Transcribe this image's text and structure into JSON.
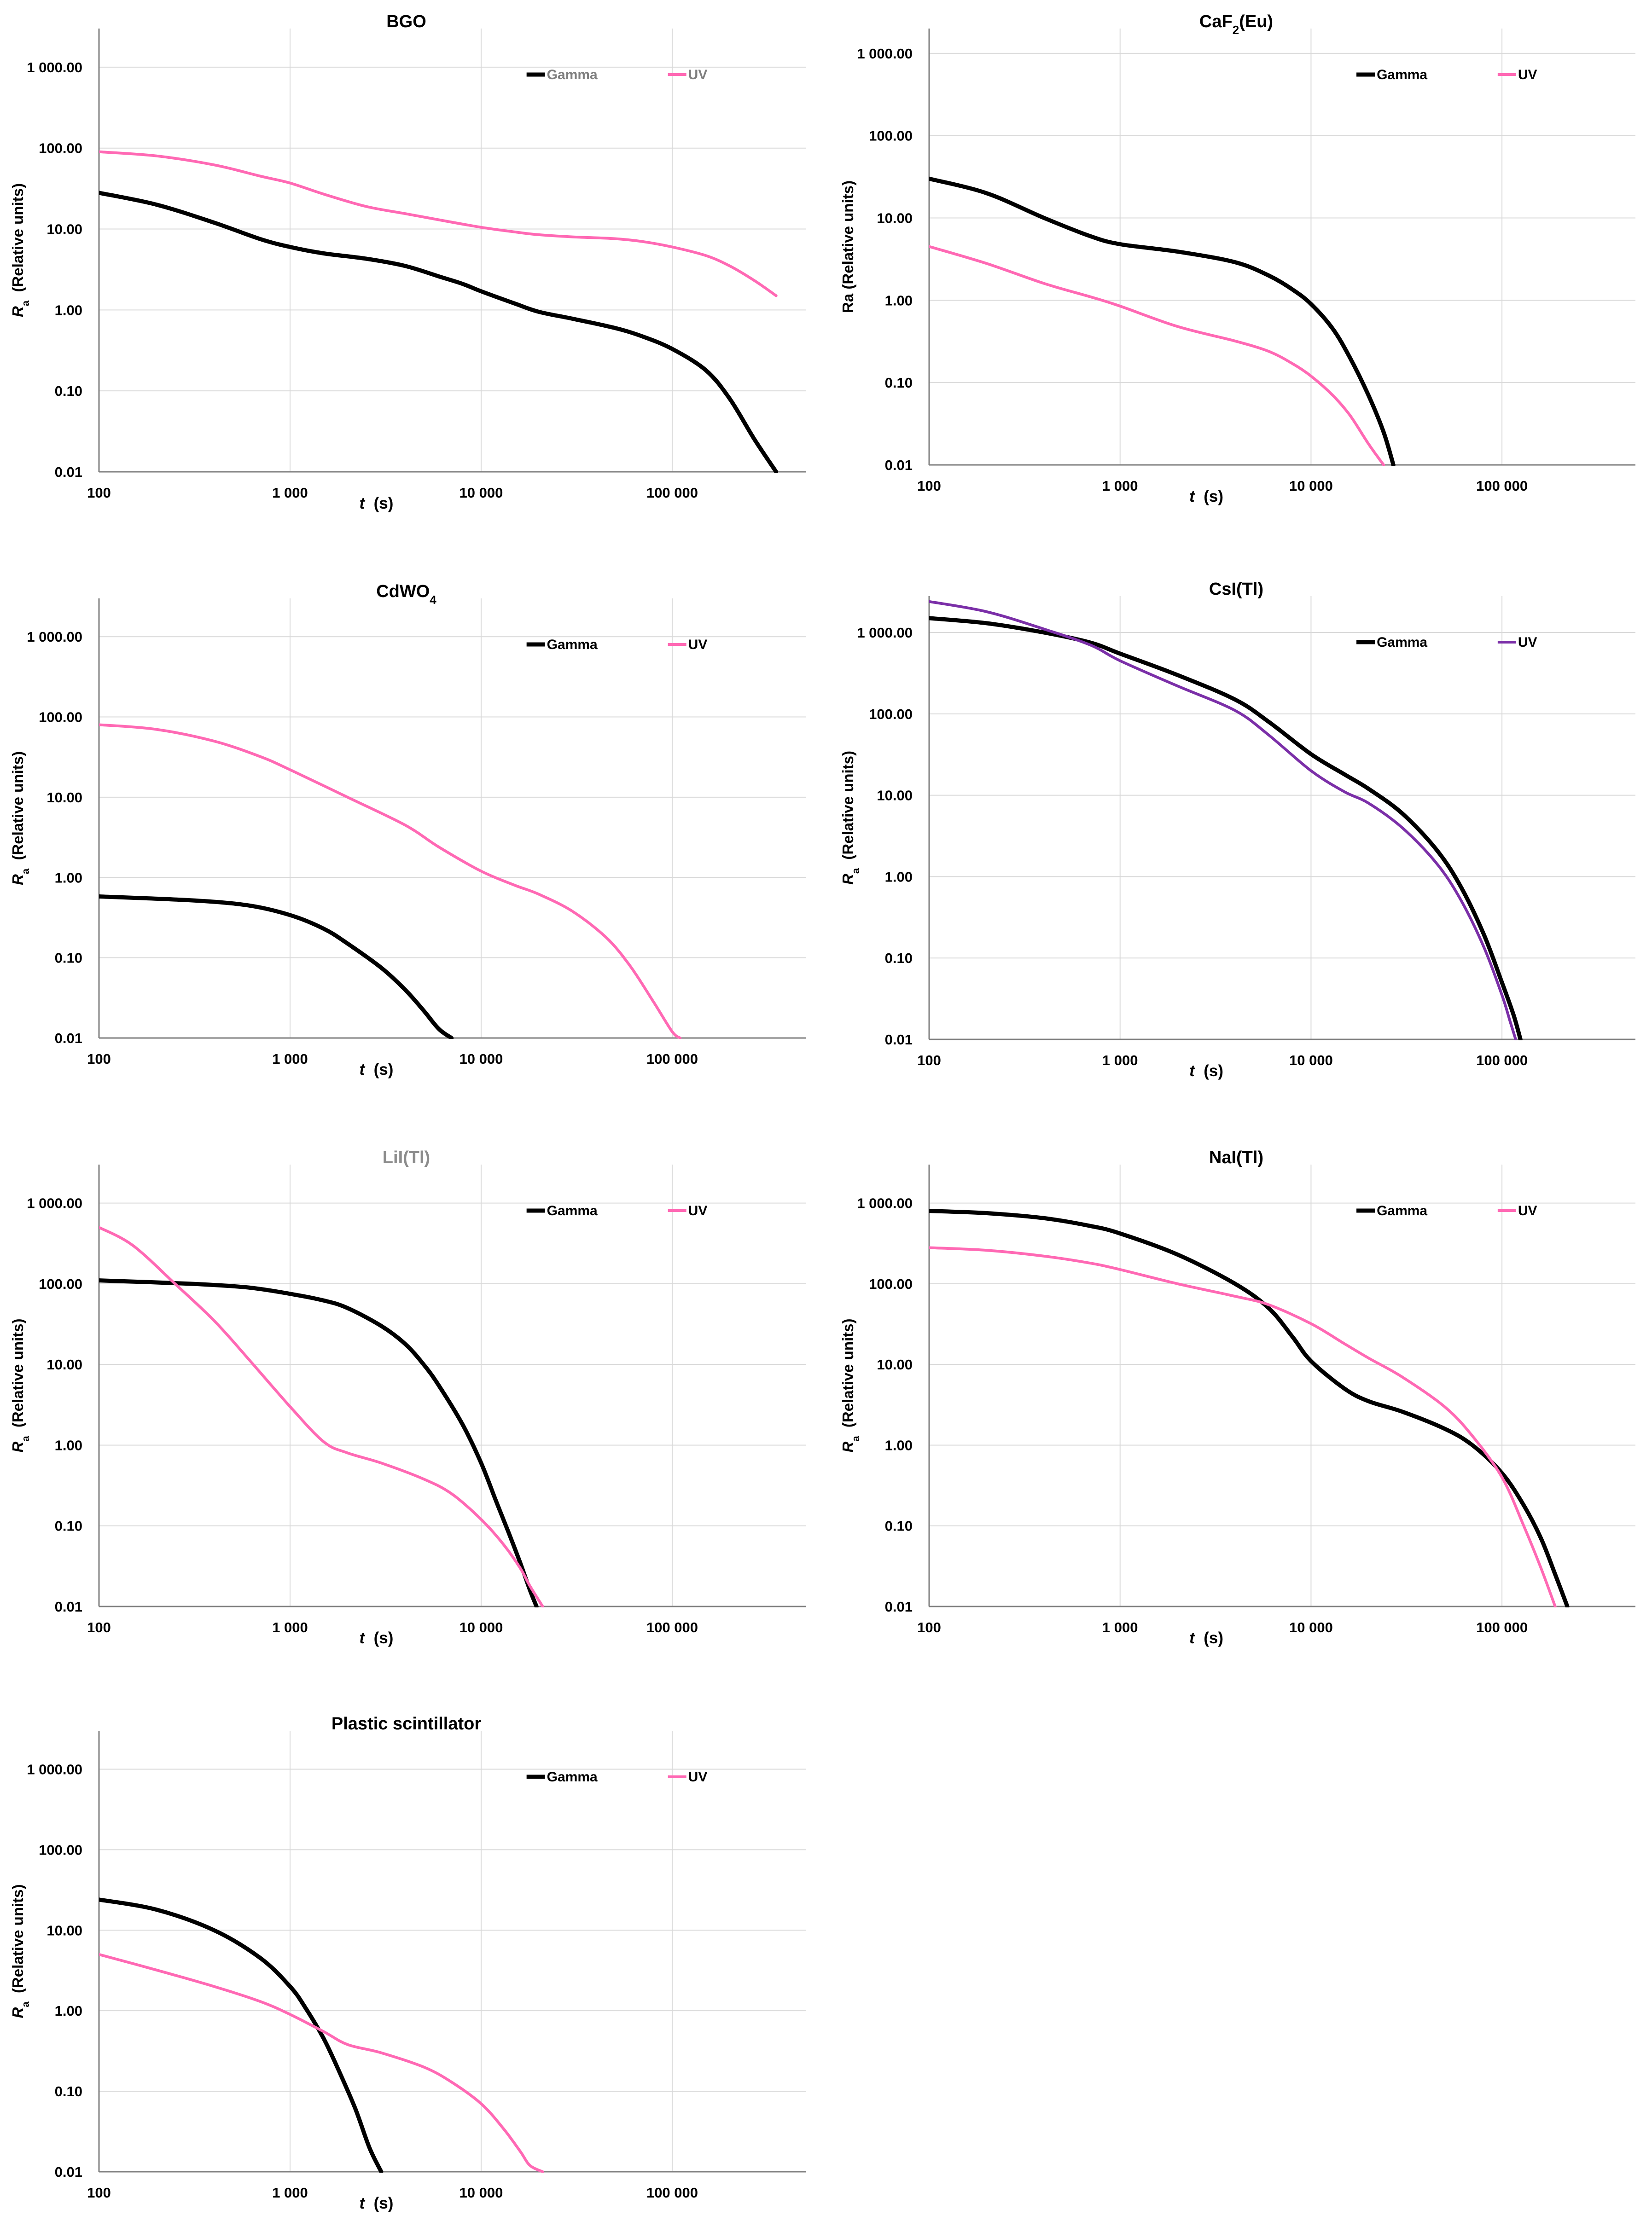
{
  "figure": {
    "background": "#ffffff"
  },
  "style": {
    "gamma_color": "#000000",
    "uv_color": "#ff69b4",
    "uv_color_alt": "#7b2fa8",
    "grid_color": "#d9d9d9",
    "axis_color": "#7f7f7f"
  },
  "chart_data": [
    {
      "id": "bgo",
      "type": "line",
      "title": "BGO",
      "title_parts": [
        {
          "text": "BGO"
        }
      ],
      "title_color": "#000000",
      "xlabel": "t  (s)",
      "ylabel": "Ra (Relative units)",
      "ylabel_parts": [
        {
          "text": "R",
          "italic": true
        },
        {
          "text": "a",
          "sub": true
        },
        {
          "text": "  (Relative units)"
        }
      ],
      "xscale": "log",
      "yscale": "log",
      "xlim": [
        100,
        500000
      ],
      "ylim": [
        0.01,
        3000
      ],
      "xticks": [
        100,
        1000,
        10000,
        100000
      ],
      "xtick_labels": [
        "100",
        "1 000",
        "10 000",
        "100 000"
      ],
      "yticks": [
        0.01,
        0.1,
        1,
        10,
        100,
        1000
      ],
      "ytick_labels": [
        "0.01",
        "0.10",
        "1.00",
        "10.00",
        "100.00",
        "1 000.00"
      ],
      "legend": "top-right",
      "legend_text_color": "#7f7f7f",
      "series": [
        {
          "name": "Gamma",
          "color": "#000000",
          "width": 9,
          "x": [
            100,
            200,
            400,
            700,
            1000,
            1500,
            2500,
            4000,
            6000,
            8000,
            10000,
            15000,
            20000,
            30000,
            50000,
            70000,
            100000,
            150000,
            200000,
            270000,
            350000
          ],
          "y": [
            28,
            20,
            12,
            7.5,
            6,
            5,
            4.3,
            3.5,
            2.6,
            2.1,
            1.7,
            1.2,
            0.95,
            0.78,
            0.6,
            0.47,
            0.33,
            0.18,
            0.08,
            0.025,
            0.01
          ]
        },
        {
          "name": "UV",
          "color": "#ff69b4",
          "width": 6,
          "x": [
            100,
            200,
            400,
            700,
            1000,
            1500,
            2500,
            4000,
            6000,
            10000,
            15000,
            20000,
            30000,
            50000,
            70000,
            100000,
            150000,
            200000,
            270000,
            350000
          ],
          "y": [
            90,
            80,
            62,
            45,
            37,
            27,
            19,
            15.5,
            13,
            10.5,
            9.2,
            8.5,
            8,
            7.6,
            7,
            6,
            4.7,
            3.5,
            2.3,
            1.5
          ]
        }
      ]
    },
    {
      "id": "caf2",
      "type": "line",
      "title": "CaF2(Eu)",
      "title_parts": [
        {
          "text": "CaF"
        },
        {
          "text": "2",
          "sub": true
        },
        {
          "text": "(Eu)"
        }
      ],
      "title_color": "#000000",
      "xlabel": "t  (s)",
      "ylabel": "Ra (Relative units)",
      "ylabel_parts": [
        {
          "text": "Ra (Relative units)"
        }
      ],
      "xscale": "log",
      "yscale": "log",
      "xlim": [
        100,
        500000
      ],
      "ylim": [
        0.01,
        2000
      ],
      "xticks": [
        100,
        1000,
        10000,
        100000
      ],
      "xtick_labels": [
        "100",
        "1 000",
        "10 000",
        "100 000"
      ],
      "yticks": [
        0.01,
        0.1,
        1,
        10,
        100,
        1000
      ],
      "ytick_labels": [
        "0.01",
        "0.10",
        "1.00",
        "10.00",
        "100.00",
        "1 000.00"
      ],
      "legend": "top-right",
      "legend_text_color": "#000000",
      "series": [
        {
          "name": "Gamma",
          "color": "#000000",
          "width": 9,
          "x": [
            100,
            200,
            400,
            700,
            1000,
            2000,
            4000,
            6000,
            8000,
            10000,
            13000,
            16000,
            20000,
            24000,
            27000
          ],
          "y": [
            30,
            20,
            10,
            6,
            4.8,
            3.9,
            2.9,
            2.0,
            1.35,
            0.9,
            0.45,
            0.2,
            0.07,
            0.025,
            0.01
          ]
        },
        {
          "name": "UV",
          "color": "#ff69b4",
          "width": 6,
          "x": [
            100,
            200,
            400,
            700,
            1000,
            2000,
            4000,
            6000,
            8000,
            10000,
            13000,
            16000,
            20000,
            24000
          ],
          "y": [
            4.5,
            2.8,
            1.6,
            1.1,
            0.85,
            0.48,
            0.32,
            0.24,
            0.17,
            0.12,
            0.07,
            0.04,
            0.018,
            0.01
          ]
        }
      ]
    },
    {
      "id": "cdwo4",
      "type": "line",
      "title": "CdWO4",
      "title_parts": [
        {
          "text": "CdWO"
        },
        {
          "text": "4",
          "sub": true
        }
      ],
      "title_color": "#000000",
      "xlabel": "t  (s)",
      "ylabel": "Ra (Relative units)",
      "ylabel_parts": [
        {
          "text": "R",
          "italic": true
        },
        {
          "text": "a",
          "sub": true
        },
        {
          "text": "  (Relative units)"
        }
      ],
      "xscale": "log",
      "yscale": "log",
      "xlim": [
        100,
        500000
      ],
      "ylim": [
        0.01,
        3000
      ],
      "xticks": [
        100,
        1000,
        10000,
        100000
      ],
      "xtick_labels": [
        "100",
        "1 000",
        "10 000",
        "100 000"
      ],
      "yticks": [
        0.01,
        0.1,
        1,
        10,
        100,
        1000
      ],
      "ytick_labels": [
        "0.01",
        "0.10",
        "1.00",
        "10.00",
        "100.00",
        "1 000.00"
      ],
      "legend": "top-right",
      "legend_text_color": "#000000",
      "series": [
        {
          "name": "Gamma",
          "color": "#000000",
          "width": 9,
          "x": [
            100,
            300,
            600,
            1000,
            1500,
            2000,
            3000,
            4000,
            5000,
            6000,
            7000
          ],
          "y": [
            0.58,
            0.52,
            0.45,
            0.34,
            0.23,
            0.15,
            0.075,
            0.04,
            0.022,
            0.013,
            0.01
          ]
        },
        {
          "name": "UV",
          "color": "#ff69b4",
          "width": 6,
          "x": [
            100,
            200,
            400,
            700,
            1000,
            2000,
            4000,
            6000,
            10000,
            15000,
            20000,
            30000,
            45000,
            60000,
            80000,
            100000,
            110000
          ],
          "y": [
            80,
            70,
            50,
            32,
            22,
            10,
            4.5,
            2.4,
            1.2,
            0.8,
            0.62,
            0.38,
            0.18,
            0.08,
            0.028,
            0.012,
            0.01
          ]
        }
      ]
    },
    {
      "id": "csi",
      "type": "line",
      "title": "CsI(Tl)",
      "title_parts": [
        {
          "text": "CsI(Tl)"
        }
      ],
      "title_color": "#000000",
      "xlabel": "t  (s)",
      "ylabel": "Ra (Relative units)",
      "ylabel_parts": [
        {
          "text": "R",
          "italic": true
        },
        {
          "text": "a",
          "sub": true
        },
        {
          "text": "  (Relative units)"
        }
      ],
      "xscale": "log",
      "yscale": "log",
      "xlim": [
        100,
        500000
      ],
      "ylim": [
        0.01,
        2800
      ],
      "xticks": [
        100,
        1000,
        10000,
        100000
      ],
      "xtick_labels": [
        "100",
        "1 000",
        "10 000",
        "100 000"
      ],
      "yticks": [
        0.01,
        0.1,
        1,
        10,
        100,
        1000
      ],
      "ytick_labels": [
        "0.01",
        "0.10",
        "1.00",
        "10.00",
        "100.00",
        "1 000.00"
      ],
      "legend": "top-right",
      "legend_text_color": "#000000",
      "series": [
        {
          "name": "Gamma",
          "color": "#000000",
          "width": 9,
          "x": [
            100,
            200,
            400,
            700,
            1000,
            2000,
            4000,
            6000,
            10000,
            15000,
            20000,
            30000,
            45000,
            60000,
            80000,
            100000,
            115000,
            125000
          ],
          "y": [
            1500,
            1300,
            1000,
            750,
            550,
            300,
            150,
            80,
            32,
            18,
            12,
            6,
            2.2,
            0.8,
            0.2,
            0.05,
            0.02,
            0.01
          ]
        },
        {
          "name": "UV",
          "color": "#7b2fa8",
          "width": 6,
          "x": [
            100,
            200,
            400,
            700,
            1000,
            2000,
            4000,
            6000,
            10000,
            15000,
            20000,
            30000,
            45000,
            60000,
            80000,
            100000,
            110000,
            118000
          ],
          "y": [
            2400,
            1800,
            1100,
            700,
            450,
            220,
            110,
            55,
            20,
            11,
            8,
            4,
            1.5,
            0.55,
            0.14,
            0.035,
            0.017,
            0.01
          ]
        }
      ]
    },
    {
      "id": "lii",
      "type": "line",
      "title": "LiI(Tl)",
      "title_parts": [
        {
          "text": "LiI(Tl)"
        }
      ],
      "title_color": "#8c8c8c",
      "xlabel": "t  (s)",
      "ylabel": "Ra (Relative units)",
      "ylabel_parts": [
        {
          "text": "R",
          "italic": true
        },
        {
          "text": "a",
          "sub": true
        },
        {
          "text": "  (Relative units)"
        }
      ],
      "xscale": "log",
      "yscale": "log",
      "xlim": [
        100,
        500000
      ],
      "ylim": [
        0.01,
        3000
      ],
      "xticks": [
        100,
        1000,
        10000,
        100000
      ],
      "xtick_labels": [
        "100",
        "1 000",
        "10 000",
        "100 000"
      ],
      "yticks": [
        0.01,
        0.1,
        1,
        10,
        100,
        1000
      ],
      "ytick_labels": [
        "0.01",
        "0.10",
        "1.00",
        "10.00",
        "100.00",
        "1 000.00"
      ],
      "legend": "top-right",
      "legend_text_color": "#000000",
      "series": [
        {
          "name": "Gamma",
          "color": "#000000",
          "width": 9,
          "x": [
            100,
            300,
            600,
            1000,
            1500,
            2000,
            3000,
            4000,
            5000,
            6000,
            8000,
            10000,
            12000,
            14000,
            16000,
            18000,
            19500
          ],
          "y": [
            110,
            100,
            90,
            75,
            62,
            50,
            30,
            18,
            10,
            5.5,
            1.8,
            0.6,
            0.2,
            0.08,
            0.035,
            0.016,
            0.01
          ]
        },
        {
          "name": "UV",
          "color": "#ff69b4",
          "width": 6,
          "x": [
            100,
            150,
            250,
            400,
            600,
            1000,
            1500,
            2000,
            3000,
            5000,
            7000,
            10000,
            13000,
            16000,
            18000,
            21000
          ],
          "y": [
            500,
            300,
            100,
            35,
            12,
            3,
            1.1,
            0.8,
            0.6,
            0.38,
            0.25,
            0.12,
            0.06,
            0.03,
            0.018,
            0.01
          ]
        }
      ]
    },
    {
      "id": "nai",
      "type": "line",
      "title": "NaI(Tl)",
      "title_parts": [
        {
          "text": "NaI(Tl)"
        }
      ],
      "title_color": "#000000",
      "xlabel": "t  (s)",
      "ylabel": "Ra (Relative units)",
      "ylabel_parts": [
        {
          "text": "R",
          "italic": true
        },
        {
          "text": "a",
          "sub": true
        },
        {
          "text": "  (Relative units)"
        }
      ],
      "xscale": "log",
      "yscale": "log",
      "xlim": [
        100,
        500000
      ],
      "ylim": [
        0.01,
        3000
      ],
      "xticks": [
        100,
        1000,
        10000,
        100000
      ],
      "xtick_labels": [
        "100",
        "1 000",
        "10 000",
        "100 000"
      ],
      "yticks": [
        0.01,
        0.1,
        1,
        10,
        100,
        1000
      ],
      "ytick_labels": [
        "0.01",
        "0.10",
        "1.00",
        "10.00",
        "100.00",
        "1 000.00"
      ],
      "legend": "top-right",
      "legend_text_color": "#000000",
      "series": [
        {
          "name": "Gamma",
          "color": "#000000",
          "width": 9,
          "x": [
            100,
            200,
            400,
            700,
            1000,
            2000,
            4000,
            6000,
            8000,
            10000,
            15000,
            20000,
            30000,
            50000,
            70000,
            100000,
            130000,
            160000,
            190000,
            220000
          ],
          "y": [
            800,
            750,
            650,
            520,
            420,
            230,
            100,
            50,
            22,
            11,
            5,
            3.5,
            2.6,
            1.6,
            1.0,
            0.45,
            0.18,
            0.07,
            0.025,
            0.01
          ]
        },
        {
          "name": "UV",
          "color": "#ff69b4",
          "width": 6,
          "x": [
            100,
            200,
            400,
            700,
            1000,
            2000,
            4000,
            6000,
            10000,
            15000,
            20000,
            30000,
            50000,
            70000,
            100000,
            130000,
            160000,
            190000
          ],
          "y": [
            280,
            260,
            220,
            180,
            150,
            100,
            70,
            55,
            32,
            18,
            12,
            7,
            3,
            1.3,
            0.4,
            0.1,
            0.03,
            0.01
          ]
        }
      ]
    },
    {
      "id": "plastic",
      "type": "line",
      "title": "Plastic scintillator",
      "title_parts": [
        {
          "text": "Plastic scintillator"
        }
      ],
      "title_color": "#000000",
      "xlabel": "t  (s)",
      "ylabel": "Ra (Relative units)",
      "ylabel_parts": [
        {
          "text": "R",
          "italic": true
        },
        {
          "text": "a",
          "sub": true
        },
        {
          "text": "  (Relative units)"
        }
      ],
      "xscale": "log",
      "yscale": "log",
      "xlim": [
        100,
        500000
      ],
      "ylim": [
        0.01,
        3000
      ],
      "xticks": [
        100,
        1000,
        10000,
        100000
      ],
      "xtick_labels": [
        "100",
        "1 000",
        "10 000",
        "100 000"
      ],
      "yticks": [
        0.01,
        0.1,
        1,
        10,
        100,
        1000
      ],
      "ytick_labels": [
        "0.01",
        "0.10",
        "1.00",
        "10.00",
        "100.00",
        "1 000.00"
      ],
      "legend": "top-right",
      "legend_text_color": "#000000",
      "series": [
        {
          "name": "Gamma",
          "color": "#000000",
          "width": 9,
          "x": [
            100,
            200,
            400,
            700,
            1000,
            1200,
            1500,
            1800,
            2200,
            2600,
            3000
          ],
          "y": [
            24,
            18,
            10,
            4.5,
            2.0,
            1.1,
            0.45,
            0.18,
            0.06,
            0.02,
            0.01
          ]
        },
        {
          "name": "UV",
          "color": "#ff69b4",
          "width": 6,
          "x": [
            100,
            200,
            400,
            700,
            1000,
            1500,
            2000,
            3000,
            5000,
            7000,
            10000,
            13000,
            16000,
            18000,
            21000
          ],
          "y": [
            5,
            3.2,
            2.0,
            1.3,
            0.9,
            0.55,
            0.38,
            0.3,
            0.2,
            0.13,
            0.07,
            0.035,
            0.018,
            0.012,
            0.01
          ]
        }
      ]
    }
  ]
}
